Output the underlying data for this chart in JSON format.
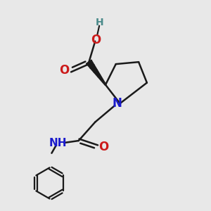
{
  "bg_color": "#e8e8e8",
  "bond_color": "#1a1a1a",
  "N_color": "#1a1acc",
  "O_color": "#cc1a1a",
  "H_color": "#4a8a8a",
  "line_width": 1.8,
  "fig_size": [
    3.0,
    3.0
  ],
  "dpi": 100,
  "xlim": [
    0,
    10
  ],
  "ylim": [
    0,
    10
  ]
}
